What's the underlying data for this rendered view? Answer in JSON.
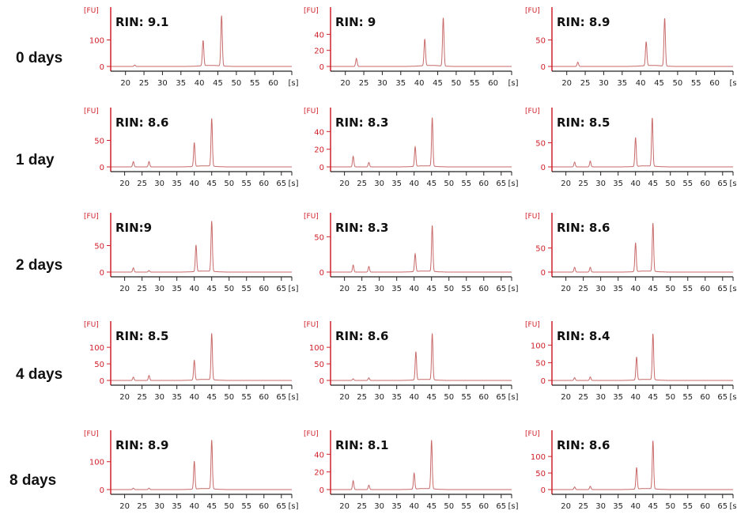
{
  "rows": [
    "0 days",
    "1 day",
    "2 days",
    "4 days",
    "8 days"
  ],
  "chart_data": [
    {
      "type": "line",
      "row": 0,
      "col": 0,
      "annotation": "RIN: 9.1",
      "ylabel": "[FU]",
      "xlabel": "[s]",
      "xlim": [
        16,
        65
      ],
      "xticks": [
        20,
        25,
        30,
        35,
        40,
        45,
        50,
        55,
        60
      ],
      "yticks": [
        0,
        100
      ],
      "ylim": [
        0,
        200
      ],
      "peaks": [
        [
          22.5,
          5
        ],
        [
          41,
          95
        ],
        [
          46,
          190
        ]
      ]
    },
    {
      "type": "line",
      "row": 0,
      "col": 1,
      "annotation": "RIN: 9",
      "ylabel": "[FU]",
      "xlabel": "[s]",
      "xlim": [
        16,
        65
      ],
      "xticks": [
        20,
        25,
        30,
        35,
        40,
        45,
        50,
        55,
        60
      ],
      "yticks": [
        0,
        20,
        40
      ],
      "ylim": [
        0,
        66
      ],
      "peaks": [
        [
          23,
          10
        ],
        [
          41.5,
          33
        ],
        [
          46.5,
          60
        ]
      ]
    },
    {
      "type": "line",
      "row": 0,
      "col": 2,
      "annotation": "RIN: 8.9",
      "ylabel": "[FU]",
      "xlabel": "[s]",
      "xlim": [
        16,
        65
      ],
      "xticks": [
        20,
        25,
        30,
        35,
        40,
        45,
        50,
        55,
        60
      ],
      "yticks": [
        0,
        50
      ],
      "ylim": [
        0,
        100
      ],
      "peaks": [
        [
          23,
          8
        ],
        [
          41.5,
          45
        ],
        [
          46.5,
          90
        ]
      ]
    },
    {
      "type": "line",
      "row": 1,
      "col": 0,
      "annotation": "RIN: 8.6",
      "ylabel": "[FU]",
      "xlabel": "[s]",
      "xlim": [
        16,
        68
      ],
      "xticks": [
        20,
        25,
        30,
        35,
        40,
        45,
        50,
        55,
        60,
        65
      ],
      "yticks": [
        0,
        50
      ],
      "ylim": [
        0,
        100
      ],
      "peaks": [
        [
          22.5,
          10
        ],
        [
          27,
          10
        ],
        [
          40,
          45
        ],
        [
          45,
          90
        ]
      ]
    },
    {
      "type": "line",
      "row": 1,
      "col": 1,
      "annotation": "RIN: 8.3",
      "ylabel": "[FU]",
      "xlabel": "[s]",
      "xlim": [
        16,
        68
      ],
      "xticks": [
        20,
        25,
        30,
        35,
        40,
        45,
        50,
        55,
        60,
        65
      ],
      "yticks": [
        0,
        20,
        40
      ],
      "ylim": [
        0,
        60
      ],
      "peaks": [
        [
          22.5,
          12
        ],
        [
          27,
          5
        ],
        [
          40.3,
          22
        ],
        [
          45.2,
          55
        ]
      ]
    },
    {
      "type": "line",
      "row": 1,
      "col": 2,
      "annotation": "RIN: 8.5",
      "ylabel": "[FU]",
      "xlabel": "[s]",
      "xlim": [
        16,
        68
      ],
      "xticks": [
        20,
        25,
        30,
        35,
        40,
        45,
        50,
        55,
        60,
        65
      ],
      "yticks": [
        0,
        50
      ],
      "ylim": [
        0,
        110
      ],
      "peaks": [
        [
          22.5,
          10
        ],
        [
          27,
          12
        ],
        [
          40,
          60
        ],
        [
          44.8,
          100
        ]
      ]
    },
    {
      "type": "line",
      "row": 2,
      "col": 0,
      "annotation": "RIN:9",
      "ylabel": "[FU]",
      "xlabel": "[s]",
      "xlim": [
        16,
        68
      ],
      "xticks": [
        20,
        25,
        30,
        35,
        40,
        45,
        50,
        55,
        60,
        65
      ],
      "yticks": [
        0,
        50
      ],
      "ylim": [
        0,
        100
      ],
      "peaks": [
        [
          22.5,
          8
        ],
        [
          27,
          3
        ],
        [
          40.5,
          50
        ],
        [
          45,
          95
        ]
      ]
    },
    {
      "type": "line",
      "row": 2,
      "col": 1,
      "annotation": "RIN: 8.3",
      "ylabel": "[FU]",
      "xlabel": "[s]",
      "xlim": [
        16,
        68
      ],
      "xticks": [
        20,
        25,
        30,
        35,
        40,
        45,
        50,
        55,
        60,
        65
      ],
      "yticks": [
        0,
        50
      ],
      "ylim": [
        0,
        75
      ],
      "peaks": [
        [
          22.5,
          10
        ],
        [
          27,
          8
        ],
        [
          40.3,
          25
        ],
        [
          45.2,
          65
        ]
      ]
    },
    {
      "type": "line",
      "row": 2,
      "col": 2,
      "annotation": "RIN: 8.6",
      "ylabel": "[FU]",
      "xlabel": "[s]",
      "xlim": [
        16,
        68
      ],
      "xticks": [
        20,
        25,
        30,
        35,
        40,
        45,
        50,
        55,
        60,
        65
      ],
      "yticks": [
        0,
        50
      ],
      "ylim": [
        0,
        110
      ],
      "peaks": [
        [
          22.5,
          10
        ],
        [
          27,
          10
        ],
        [
          40,
          60
        ],
        [
          45,
          100
        ]
      ]
    },
    {
      "type": "line",
      "row": 3,
      "col": 0,
      "annotation": "RIN: 8.5",
      "ylabel": "[FU]",
      "xlabel": "[s]",
      "xlim": [
        16,
        68
      ],
      "xticks": [
        20,
        25,
        30,
        35,
        40,
        45,
        50,
        55,
        60,
        65
      ],
      "yticks": [
        0,
        50,
        100
      ],
      "ylim": [
        0,
        160
      ],
      "peaks": [
        [
          22.5,
          10
        ],
        [
          27,
          15
        ],
        [
          40,
          60
        ],
        [
          45,
          140
        ]
      ]
    },
    {
      "type": "line",
      "row": 3,
      "col": 1,
      "annotation": "RIN: 8.6",
      "ylabel": "[FU]",
      "xlabel": "[s]",
      "xlim": [
        16,
        68
      ],
      "xticks": [
        20,
        25,
        30,
        35,
        40,
        45,
        50,
        55,
        60,
        65
      ],
      "yticks": [
        0,
        50,
        100
      ],
      "ylim": [
        0,
        160
      ],
      "peaks": [
        [
          22.5,
          5
        ],
        [
          27,
          8
        ],
        [
          40.5,
          85
        ],
        [
          45.2,
          140
        ]
      ]
    },
    {
      "type": "line",
      "row": 3,
      "col": 2,
      "annotation": "RIN: 8.4",
      "ylabel": "[FU]",
      "xlabel": "[s]",
      "xlim": [
        16,
        68
      ],
      "xticks": [
        20,
        25,
        30,
        35,
        40,
        45,
        50,
        55,
        60,
        65
      ],
      "yticks": [
        0,
        50,
        100
      ],
      "ylim": [
        0,
        150
      ],
      "peaks": [
        [
          22.5,
          8
        ],
        [
          27,
          10
        ],
        [
          40.3,
          65
        ],
        [
          45,
          130
        ]
      ]
    },
    {
      "type": "line",
      "row": 4,
      "col": 0,
      "annotation": "RIN: 8.9",
      "ylabel": "[FU]",
      "xlabel": "[s]",
      "xlim": [
        16,
        68
      ],
      "xticks": [
        20,
        25,
        30,
        35,
        40,
        45,
        50,
        55,
        60,
        65
      ],
      "yticks": [
        0,
        100
      ],
      "ylim": [
        0,
        190
      ],
      "peaks": [
        [
          22.5,
          5
        ],
        [
          27,
          5
        ],
        [
          40,
          100
        ],
        [
          45,
          175
        ]
      ]
    },
    {
      "type": "line",
      "row": 4,
      "col": 1,
      "annotation": "RIN: 8.1",
      "ylabel": "[FU]",
      "xlabel": "[s]",
      "xlim": [
        16,
        68
      ],
      "xticks": [
        20,
        25,
        30,
        35,
        40,
        45,
        50,
        55,
        60,
        65
      ],
      "yticks": [
        0,
        20,
        40
      ],
      "ylim": [
        0,
        60
      ],
      "peaks": [
        [
          22.5,
          10
        ],
        [
          27,
          5
        ],
        [
          40,
          18
        ],
        [
          45,
          55
        ]
      ]
    },
    {
      "type": "line",
      "row": 4,
      "col": 2,
      "annotation": "RIN: 8.6",
      "ylabel": "[FU]",
      "xlabel": "[s]",
      "xlim": [
        16,
        68
      ],
      "xticks": [
        20,
        25,
        30,
        35,
        40,
        45,
        50,
        55,
        60,
        65
      ],
      "yticks": [
        0,
        50,
        100
      ],
      "ylim": [
        0,
        160
      ],
      "peaks": [
        [
          22.5,
          8
        ],
        [
          27,
          10
        ],
        [
          40.3,
          65
        ],
        [
          45,
          145
        ]
      ]
    }
  ],
  "colors": {
    "axis": "#d0202a",
    "trace": "#c86a6a",
    "text": "#111111"
  }
}
